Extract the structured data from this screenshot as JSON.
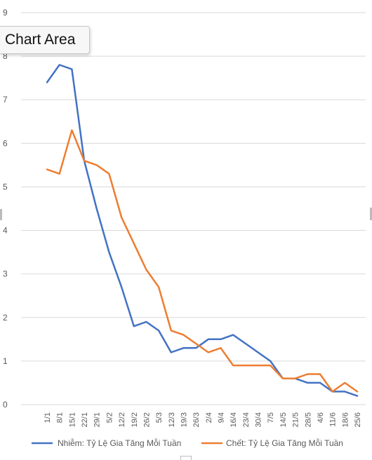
{
  "tooltip": {
    "label": "Chart Area"
  },
  "chart_data": {
    "type": "line",
    "categories": [
      "1/1",
      "8/1",
      "15/1",
      "22/1",
      "29/1",
      "5/2",
      "12/2",
      "19/2",
      "26/2",
      "5/3",
      "12/3",
      "19/3",
      "26/3",
      "2/4",
      "9/4",
      "16/4",
      "23/4",
      "30/4",
      "7/5",
      "14/5",
      "21/5",
      "28/5",
      "4/6",
      "11/6",
      "18/6",
      "25/6"
    ],
    "ylim": [
      0,
      9
    ],
    "yticks": [
      "0",
      "1",
      "2",
      "3",
      "4",
      "5",
      "6",
      "7",
      "8",
      "9"
    ],
    "grid": true,
    "legend_position": "bottom",
    "series": [
      {
        "name": "Nhiễm: Tỷ Lệ Gia Tăng   Mỗi Tuần",
        "color": "#4472C4",
        "values": [
          7.4,
          7.8,
          7.7,
          5.6,
          4.5,
          3.5,
          2.7,
          1.8,
          1.9,
          1.7,
          1.2,
          1.3,
          1.3,
          1.5,
          1.5,
          1.6,
          1.4,
          1.2,
          1.0,
          0.6,
          0.6,
          0.5,
          0.5,
          0.3,
          0.3,
          0.2
        ]
      },
      {
        "name": "Chết: Tỷ Lệ Gia Tăng Mỗi Tuần",
        "color": "#ED7D31",
        "values": [
          5.4,
          5.3,
          6.3,
          5.6,
          5.5,
          5.3,
          4.3,
          3.7,
          3.1,
          2.7,
          1.7,
          1.6,
          1.4,
          1.2,
          1.3,
          0.9,
          0.9,
          0.9,
          0.9,
          0.6,
          0.6,
          0.7,
          0.7,
          0.3,
          0.5,
          0.3
        ]
      }
    ]
  }
}
